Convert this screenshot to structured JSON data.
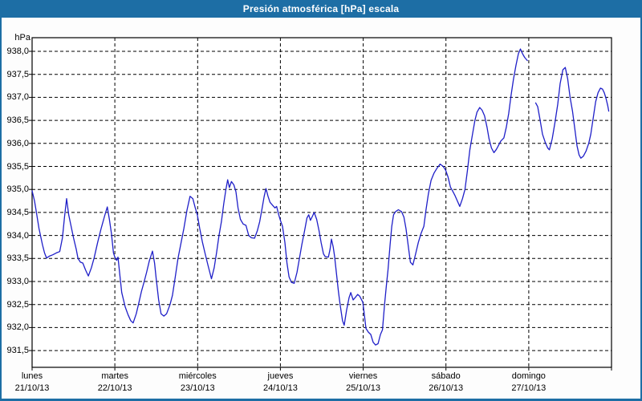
{
  "window": {
    "title": "Presión atmosférica [hPa] escala"
  },
  "chart_data": {
    "type": "line",
    "title": "Presión atmosférica [hPa] escala",
    "y_unit_label": "hPa",
    "line_color": "#1f1fc8",
    "grid": "dashed-black",
    "legend": "none",
    "ylim": [
      931.15,
      938.3
    ],
    "x_hours_total": 168,
    "yticks": [
      {
        "value": 938.0,
        "label": "938,0"
      },
      {
        "value": 937.5,
        "label": "937,5"
      },
      {
        "value": 937.0,
        "label": "937,0"
      },
      {
        "value": 936.5,
        "label": "936,5"
      },
      {
        "value": 936.0,
        "label": "936,0"
      },
      {
        "value": 935.5,
        "label": "935,5"
      },
      {
        "value": 935.0,
        "label": "935,0"
      },
      {
        "value": 934.5,
        "label": "934,5"
      },
      {
        "value": 934.0,
        "label": "934,0"
      },
      {
        "value": 933.5,
        "label": "933,5"
      },
      {
        "value": 933.0,
        "label": "933,0"
      },
      {
        "value": 932.5,
        "label": "932,5"
      },
      {
        "value": 932.0,
        "label": "932,0"
      },
      {
        "value": 931.5,
        "label": "931,5"
      }
    ],
    "x_days": [
      {
        "name": "lunes",
        "date": "21/10/13"
      },
      {
        "name": "martes",
        "date": "22/10/13"
      },
      {
        "name": "miércoles",
        "date": "23/10/13"
      },
      {
        "name": "jueves",
        "date": "24/10/13"
      },
      {
        "name": "viernes",
        "date": "25/10/13"
      },
      {
        "name": "sábado",
        "date": "26/10/13"
      },
      {
        "name": "domingo",
        "date": "27/10/13"
      }
    ],
    "series_name": "Presión atmosférica",
    "segments": [
      [
        [
          0,
          934.97
        ],
        [
          0.7,
          934.75
        ],
        [
          1.2,
          934.52
        ],
        [
          2,
          934.15
        ],
        [
          3,
          933.8
        ],
        [
          3.6,
          933.62
        ],
        [
          4.2,
          933.51
        ],
        [
          5,
          933.55
        ],
        [
          6,
          933.58
        ],
        [
          7,
          933.62
        ],
        [
          8,
          933.65
        ],
        [
          8.8,
          933.95
        ],
        [
          9.4,
          934.4
        ],
        [
          10,
          934.8
        ],
        [
          10.6,
          934.45
        ],
        [
          11.3,
          934.2
        ],
        [
          12,
          933.95
        ],
        [
          12.8,
          933.7
        ],
        [
          13.3,
          933.5
        ],
        [
          14,
          933.42
        ],
        [
          14.7,
          933.4
        ],
        [
          15.5,
          933.25
        ],
        [
          16.3,
          933.12
        ],
        [
          17.2,
          933.3
        ],
        [
          18,
          933.52
        ],
        [
          19,
          933.85
        ],
        [
          20,
          934.15
        ],
        [
          21,
          934.42
        ],
        [
          21.8,
          934.62
        ],
        [
          22.4,
          934.35
        ],
        [
          23,
          934.05
        ],
        [
          23.6,
          933.62
        ],
        [
          24,
          933.53
        ],
        [
          24.5,
          933.46
        ],
        [
          24.9,
          933.53
        ],
        [
          25.5,
          933.1
        ],
        [
          26,
          932.76
        ],
        [
          27,
          932.45
        ],
        [
          27.8,
          932.28
        ],
        [
          28.6,
          932.15
        ],
        [
          29.3,
          932.1
        ],
        [
          30.2,
          932.3
        ],
        [
          31,
          932.55
        ],
        [
          31.7,
          932.78
        ],
        [
          32.5,
          933.0
        ],
        [
          33.2,
          933.2
        ],
        [
          34,
          933.45
        ],
        [
          34.9,
          933.66
        ],
        [
          35.5,
          933.4
        ],
        [
          36,
          933.05
        ],
        [
          36.7,
          932.6
        ],
        [
          37.4,
          932.3
        ],
        [
          38.2,
          932.25
        ],
        [
          39,
          932.3
        ],
        [
          40,
          932.5
        ],
        [
          40.7,
          932.7
        ],
        [
          41.5,
          933.1
        ],
        [
          42.3,
          933.5
        ],
        [
          43.2,
          933.85
        ],
        [
          44,
          934.15
        ],
        [
          44.9,
          934.55
        ],
        [
          45.8,
          934.85
        ],
        [
          46.6,
          934.8
        ],
        [
          47.3,
          934.6
        ],
        [
          47.9,
          934.45
        ],
        [
          48.6,
          934.15
        ],
        [
          49.4,
          933.85
        ],
        [
          50.2,
          933.6
        ],
        [
          51,
          933.35
        ],
        [
          52,
          933.06
        ],
        [
          52.8,
          933.3
        ],
        [
          53.5,
          933.63
        ],
        [
          54.2,
          934.0
        ],
        [
          54.9,
          934.3
        ],
        [
          55.6,
          934.7
        ],
        [
          56.2,
          935.0
        ],
        [
          56.7,
          935.21
        ],
        [
          57.2,
          935.04
        ],
        [
          57.8,
          935.17
        ],
        [
          58.5,
          935.1
        ],
        [
          59.1,
          934.95
        ],
        [
          59.7,
          934.6
        ],
        [
          60.4,
          934.35
        ],
        [
          61.2,
          934.25
        ],
        [
          62,
          934.22
        ],
        [
          62.8,
          934.0
        ],
        [
          63.6,
          933.95
        ],
        [
          64.5,
          933.94
        ],
        [
          65.3,
          934.1
        ],
        [
          66,
          934.3
        ],
        [
          66.7,
          934.6
        ],
        [
          67.3,
          934.85
        ],
        [
          67.8,
          935.02
        ],
        [
          68.4,
          934.85
        ],
        [
          69,
          934.72
        ],
        [
          69.8,
          934.65
        ],
        [
          70.4,
          934.6
        ],
        [
          70.9,
          934.63
        ],
        [
          71.5,
          934.45
        ],
        [
          72,
          934.33
        ],
        [
          72.6,
          934.2
        ],
        [
          73.3,
          933.85
        ],
        [
          73.9,
          933.4
        ],
        [
          74.5,
          933.1
        ],
        [
          75.2,
          932.98
        ],
        [
          76,
          932.96
        ],
        [
          76.8,
          933.2
        ],
        [
          77.5,
          933.5
        ],
        [
          78.2,
          933.8
        ],
        [
          79,
          934.1
        ],
        [
          79.7,
          934.38
        ],
        [
          80.2,
          934.45
        ],
        [
          80.7,
          934.33
        ],
        [
          81.3,
          934.42
        ],
        [
          81.8,
          934.5
        ],
        [
          82.5,
          934.35
        ],
        [
          83.2,
          934.1
        ],
        [
          83.8,
          933.85
        ],
        [
          84.5,
          933.6
        ],
        [
          85,
          933.54
        ],
        [
          85.9,
          933.53
        ],
        [
          86.4,
          933.7
        ],
        [
          86.8,
          933.92
        ],
        [
          87.3,
          933.75
        ],
        [
          87.7,
          933.55
        ],
        [
          88.2,
          933.2
        ],
        [
          88.8,
          932.8
        ],
        [
          89.3,
          932.5
        ],
        [
          90,
          932.15
        ],
        [
          90.5,
          932.05
        ],
        [
          91.2,
          932.38
        ],
        [
          91.9,
          932.65
        ],
        [
          92.4,
          932.76
        ],
        [
          93.1,
          932.6
        ],
        [
          93.9,
          932.67
        ],
        [
          94.4,
          932.72
        ],
        [
          95,
          932.68
        ],
        [
          95.9,
          932.55
        ],
        [
          96.3,
          932.3
        ],
        [
          96.8,
          931.98
        ],
        [
          97.5,
          931.9
        ],
        [
          98.2,
          931.85
        ],
        [
          98.9,
          931.68
        ],
        [
          99.6,
          931.62
        ],
        [
          100.3,
          931.65
        ],
        [
          101,
          931.85
        ],
        [
          101.6,
          931.95
        ],
        [
          102.2,
          932.5
        ],
        [
          102.7,
          932.9
        ],
        [
          103.2,
          933.25
        ],
        [
          103.8,
          933.8
        ],
        [
          104.3,
          934.2
        ],
        [
          104.8,
          934.45
        ],
        [
          105.4,
          934.52
        ],
        [
          106.2,
          934.56
        ],
        [
          107.1,
          934.52
        ],
        [
          107.8,
          934.4
        ],
        [
          108.4,
          934.15
        ],
        [
          109.1,
          933.75
        ],
        [
          109.7,
          933.42
        ],
        [
          110.4,
          933.36
        ],
        [
          111.2,
          933.6
        ],
        [
          112,
          933.85
        ],
        [
          112.8,
          934.05
        ],
        [
          113.6,
          934.2
        ],
        [
          114.2,
          934.55
        ],
        [
          114.9,
          934.9
        ],
        [
          115.7,
          935.2
        ],
        [
          116.5,
          935.35
        ],
        [
          117.3,
          935.45
        ],
        [
          118.3,
          935.55
        ],
        [
          119.2,
          935.5
        ],
        [
          119.9,
          935.42
        ],
        [
          120.6,
          935.27
        ],
        [
          121.3,
          935.05
        ],
        [
          121.9,
          934.97
        ],
        [
          122.6,
          934.87
        ],
        [
          123.3,
          934.75
        ],
        [
          124,
          934.63
        ],
        [
          124.8,
          934.8
        ],
        [
          125.5,
          935.0
        ],
        [
          126.2,
          935.4
        ],
        [
          126.9,
          935.85
        ],
        [
          127.7,
          936.2
        ],
        [
          128.4,
          936.5
        ],
        [
          129,
          936.68
        ],
        [
          129.8,
          936.78
        ],
        [
          130.5,
          936.72
        ],
        [
          131.2,
          936.6
        ],
        [
          131.9,
          936.35
        ],
        [
          132.5,
          936.1
        ],
        [
          133.2,
          935.9
        ],
        [
          133.9,
          935.8
        ],
        [
          134.6,
          935.87
        ],
        [
          135.2,
          935.95
        ],
        [
          135.9,
          936.05
        ],
        [
          136.8,
          936.12
        ],
        [
          137.5,
          936.35
        ],
        [
          138.2,
          936.65
        ],
        [
          138.9,
          937.05
        ],
        [
          139.6,
          937.4
        ],
        [
          140.3,
          937.7
        ],
        [
          141,
          937.95
        ],
        [
          141.6,
          938.05
        ],
        [
          142.2,
          937.95
        ],
        [
          142.8,
          937.87
        ],
        [
          143.6,
          937.8
        ]
      ],
      [
        [
          146,
          936.88
        ],
        [
          146.6,
          936.8
        ],
        [
          147.2,
          936.55
        ],
        [
          148,
          936.2
        ],
        [
          148.8,
          936.02
        ],
        [
          149.5,
          935.9
        ],
        [
          150,
          935.86
        ],
        [
          150.8,
          936.1
        ],
        [
          151.6,
          936.45
        ],
        [
          152.4,
          936.85
        ],
        [
          153.1,
          937.3
        ],
        [
          153.9,
          937.6
        ],
        [
          154.6,
          937.65
        ],
        [
          155.3,
          937.4
        ],
        [
          156,
          937.0
        ],
        [
          156.7,
          936.7
        ],
        [
          157.4,
          936.3
        ],
        [
          158,
          935.95
        ],
        [
          158.6,
          935.75
        ],
        [
          159.1,
          935.68
        ],
        [
          159.8,
          935.72
        ],
        [
          160.6,
          935.83
        ],
        [
          161.4,
          936.0
        ],
        [
          162,
          936.2
        ],
        [
          162.7,
          936.55
        ],
        [
          163.4,
          936.9
        ],
        [
          164.1,
          937.1
        ],
        [
          164.8,
          937.2
        ],
        [
          165.4,
          937.18
        ],
        [
          165.9,
          937.1
        ],
        [
          166.4,
          936.98
        ],
        [
          166.9,
          936.82
        ],
        [
          167.2,
          936.7
        ]
      ]
    ]
  }
}
